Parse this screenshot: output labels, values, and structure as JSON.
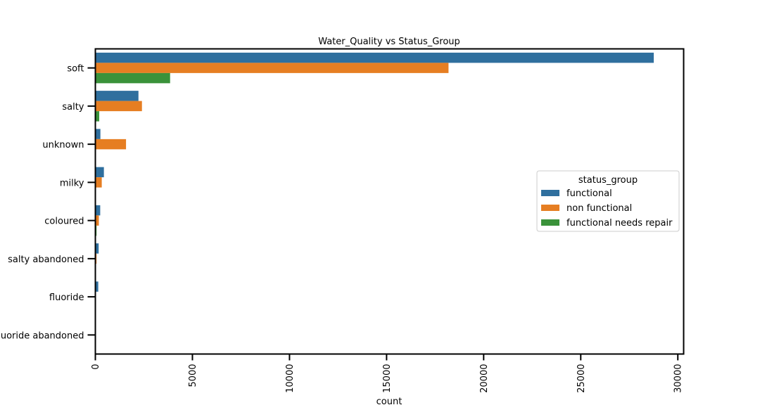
{
  "chart_data": {
    "type": "bar",
    "orientation": "horizontal",
    "title": "Water_Quality vs Status_Group",
    "xlabel": "count",
    "ylabel": "",
    "xlim": [
      0,
      30300
    ],
    "xticks": [
      0,
      5000,
      10000,
      15000,
      20000,
      25000,
      30000
    ],
    "categories": [
      "soft",
      "salty",
      "unknown",
      "milky",
      "coloured",
      "salty abandoned",
      "fluoride",
      "fluoride abandoned"
    ],
    "series": [
      {
        "name": "functional",
        "color": "#2f6f9e",
        "values": [
          28760,
          2220,
          260,
          440,
          250,
          170,
          150,
          10
        ]
      },
      {
        "name": "non functional",
        "color": "#e67e22",
        "values": [
          18190,
          2400,
          1580,
          330,
          180,
          60,
          30,
          5
        ]
      },
      {
        "name": "functional needs repair",
        "color": "#3a923a",
        "values": [
          3850,
          200,
          30,
          15,
          60,
          10,
          5,
          2
        ]
      }
    ],
    "legend": {
      "title": "status_group",
      "placement": "center-right"
    },
    "grid": false
  }
}
